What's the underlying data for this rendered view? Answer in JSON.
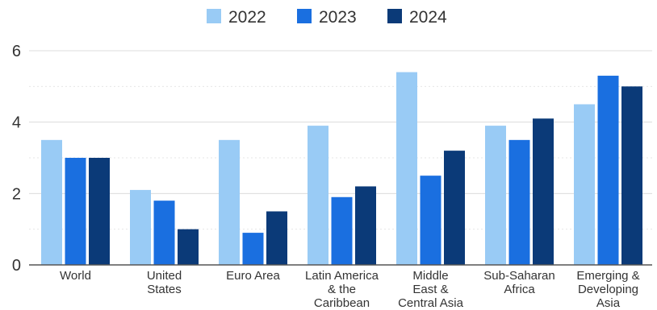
{
  "chart_data": {
    "type": "bar",
    "categories": [
      [
        "World"
      ],
      [
        "United",
        "States"
      ],
      [
        "Euro Area"
      ],
      [
        "Latin America",
        "& the",
        "Caribbean"
      ],
      [
        "Middle",
        "East &",
        "Central Asia"
      ],
      [
        "Sub-Saharan",
        "Africa"
      ],
      [
        "Emerging &",
        "Developing",
        "Asia"
      ]
    ],
    "series": [
      {
        "name": "2022",
        "color": "#99cbf5",
        "values": [
          3.5,
          2.1,
          3.5,
          3.9,
          5.4,
          3.9,
          4.5
        ]
      },
      {
        "name": "2023",
        "color": "#1a6fe0",
        "values": [
          3.0,
          1.8,
          0.9,
          1.9,
          2.5,
          3.5,
          5.3
        ]
      },
      {
        "name": "2024",
        "color": "#0b3a78",
        "values": [
          3.0,
          1.0,
          1.5,
          2.2,
          3.2,
          4.1,
          5.0
        ]
      }
    ],
    "yticks": [
      "0",
      "2",
      "4",
      "6"
    ],
    "ylim": [
      0,
      6
    ],
    "grid": true,
    "legend": "top-center",
    "title": "",
    "xlabel": "",
    "ylabel": ""
  }
}
